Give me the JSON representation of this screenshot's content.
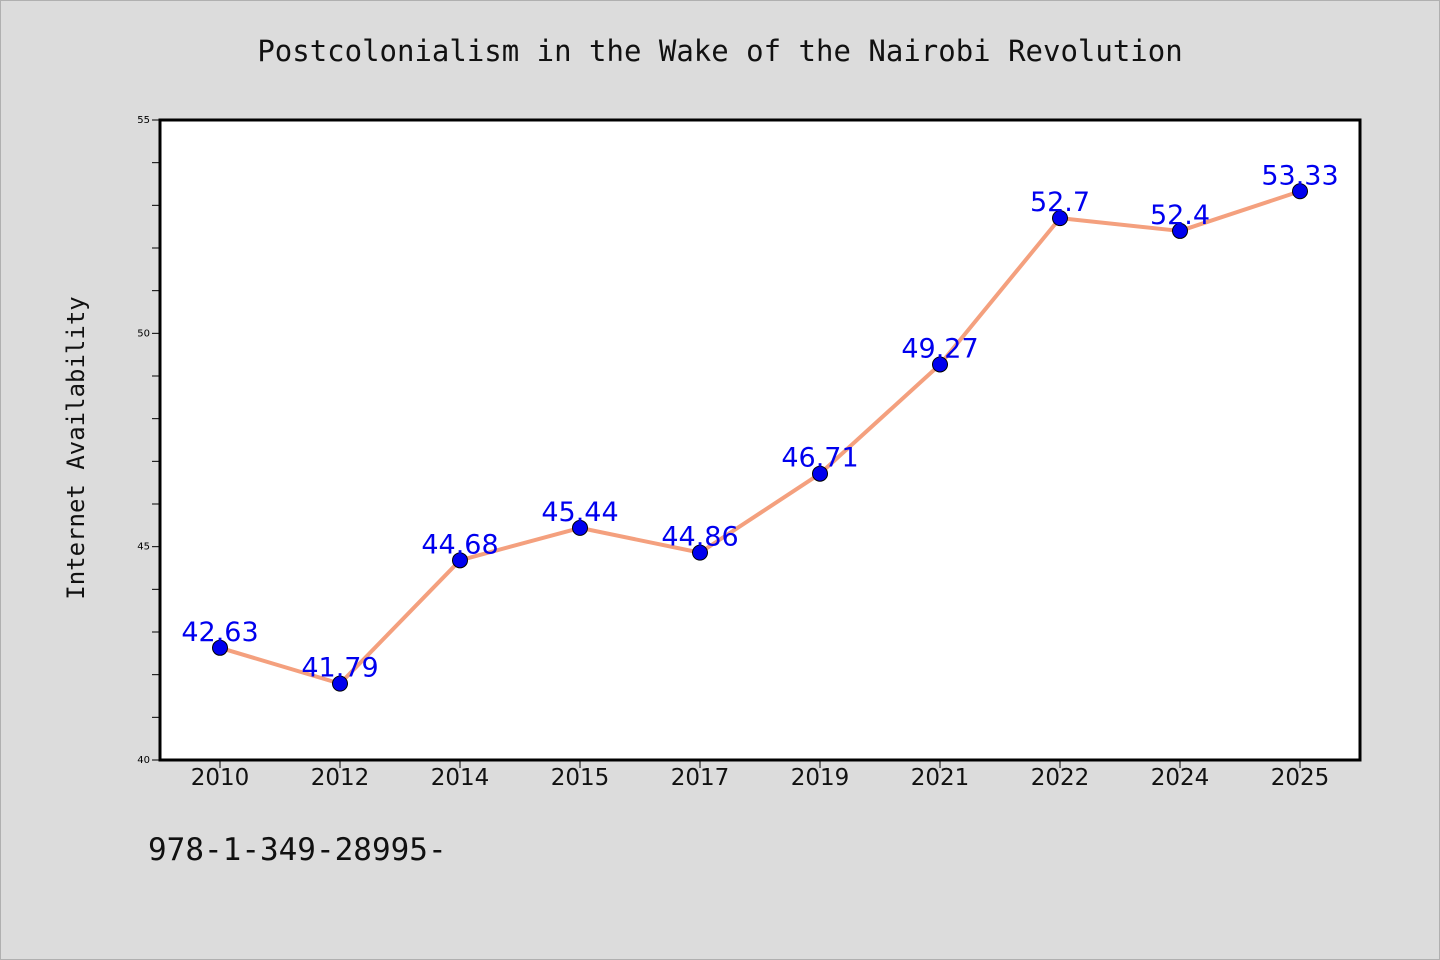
{
  "chart_data": {
    "type": "line",
    "title": "Postcolonialism in the Wake of the Nairobi Revolution",
    "xlabel": "",
    "ylabel": "Internet Availability",
    "categories": [
      "2010",
      "2012",
      "2014",
      "2015",
      "2017",
      "2019",
      "2021",
      "2022",
      "2024",
      "2025"
    ],
    "series": [
      {
        "values": [
          42.63,
          41.79,
          44.68,
          45.44,
          44.86,
          46.71,
          49.27,
          52.7,
          52.4,
          53.33
        ],
        "data_labels": [
          "42.63",
          "41.79",
          "44.68",
          "45.44",
          "44.86",
          "46.71",
          "49.27",
          "52.7",
          "52.4",
          "53.33"
        ]
      }
    ],
    "ylim": [
      40,
      55
    ],
    "yticks": [
      "40",
      "45",
      "50",
      "55"
    ],
    "grid": false,
    "colors": {
      "line": "#f4a07e",
      "marker": "#0000ee",
      "label": "#0000ee"
    }
  },
  "footer": {
    "code": "978-1-349-28995-"
  }
}
